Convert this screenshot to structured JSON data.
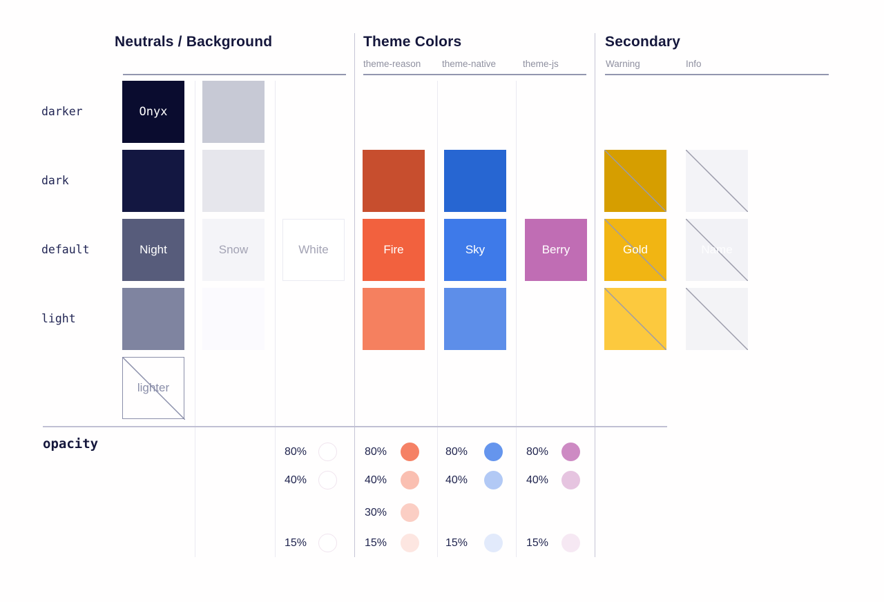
{
  "headers": {
    "neutrals": {
      "title": "Neutrals / Background"
    },
    "theme": {
      "title": "Theme Colors",
      "subtitles": [
        "theme-reason",
        "theme-native",
        "theme-js"
      ]
    },
    "secondary": {
      "title": "Secondary",
      "subtitles": [
        "Warning",
        "Info"
      ]
    }
  },
  "row_labels": [
    {
      "id": "darker",
      "label": "darker"
    },
    {
      "id": "dark",
      "label": "dark"
    },
    {
      "id": "default",
      "label": "default"
    },
    {
      "id": "light",
      "label": "light"
    }
  ],
  "opacity_section": {
    "label": "opacity",
    "columns": [
      {
        "name": "white",
        "base_color": "#FFFFFF",
        "bordered": true,
        "border_color": "#F0E4EE",
        "entries": [
          {
            "percent": "80%"
          },
          {
            "percent": "40%"
          },
          {
            "percent": "15%"
          }
        ]
      },
      {
        "name": "fire",
        "base_color": "#F2613E",
        "entries": [
          {
            "percent": "80%"
          },
          {
            "percent": "40%"
          },
          {
            "percent": "30%"
          },
          {
            "percent": "15%"
          }
        ]
      },
      {
        "name": "sky",
        "base_color": "#3E7AE9",
        "entries": [
          {
            "percent": "80%"
          },
          {
            "percent": "40%"
          },
          {
            "percent": "15%"
          }
        ]
      },
      {
        "name": "berry",
        "base_color": "#C06DB4",
        "entries": [
          {
            "percent": "80%"
          },
          {
            "percent": "40%"
          },
          {
            "percent": "15%"
          }
        ]
      }
    ]
  },
  "swatches": [
    {
      "name": "swatch-onyx",
      "column": "neutral-1",
      "row": "darker",
      "color": "#0A0C2F",
      "label": "Onyx",
      "label_color": "#FFFFFF",
      "mono": true
    },
    {
      "name": "swatch-neutral-dark",
      "column": "neutral-1",
      "row": "dark",
      "color": "#131741"
    },
    {
      "name": "swatch-night",
      "column": "neutral-1",
      "row": "default",
      "color": "#575C7B",
      "label": "Night",
      "label_color": "#FFFFFF"
    },
    {
      "name": "swatch-neutral-light",
      "column": "neutral-1",
      "row": "light",
      "color": "#7F84A0"
    },
    {
      "name": "swatch-lighter",
      "column": "neutral-1",
      "row": "lighter",
      "color": "transparent",
      "border_color": "#8A8EA9",
      "crossed": true,
      "cross_color": "#8A8EA9",
      "label": "lighter",
      "label_color": "#8A8EA9"
    },
    {
      "name": "swatch-bg-darker",
      "column": "neutral-2",
      "row": "darker",
      "color": "#C7C9D5"
    },
    {
      "name": "swatch-bg-dark",
      "column": "neutral-2",
      "row": "dark",
      "color": "#E6E6EC"
    },
    {
      "name": "swatch-snow",
      "column": "neutral-2",
      "row": "default",
      "color": "#F4F4F8",
      "label": "Snow",
      "label_color": "#A3A3B4"
    },
    {
      "name": "swatch-bg-light",
      "column": "neutral-2",
      "row": "light",
      "color": "#FBFAFE"
    },
    {
      "name": "swatch-white",
      "column": "neutral-3",
      "row": "default",
      "color": "#FFFFFF",
      "border_color": "#EAEAF2",
      "label": "White",
      "label_color": "#A3A3B4"
    },
    {
      "name": "swatch-fire-dark",
      "column": "fire",
      "row": "dark",
      "color": "#C74E2E"
    },
    {
      "name": "swatch-fire",
      "column": "fire",
      "row": "default",
      "color": "#F2613E",
      "label": "Fire",
      "label_color": "#FFFFFF"
    },
    {
      "name": "swatch-fire-light",
      "column": "fire",
      "row": "light",
      "color": "#F5805F"
    },
    {
      "name": "swatch-sky-dark",
      "column": "sky",
      "row": "dark",
      "color": "#2766D2"
    },
    {
      "name": "swatch-sky",
      "column": "sky",
      "row": "default",
      "color": "#3E7AE9",
      "label": "Sky",
      "label_color": "#FFFFFF"
    },
    {
      "name": "swatch-sky-light",
      "column": "sky",
      "row": "light",
      "color": "#5D8EE9"
    },
    {
      "name": "swatch-berry",
      "column": "berry",
      "row": "default",
      "color": "#C06DB4",
      "label": "Berry",
      "label_color": "#FFFFFF"
    },
    {
      "name": "swatch-gold-dark",
      "column": "warning",
      "row": "dark",
      "color": "#D69E00",
      "crossed": true,
      "cross_color": "#9B9BAA"
    },
    {
      "name": "swatch-gold",
      "column": "warning",
      "row": "default",
      "color": "#F1B513",
      "label": "Gold",
      "label_color": "#FFFFFF",
      "crossed": true,
      "cross_color": "#9B9BAA"
    },
    {
      "name": "swatch-gold-light",
      "column": "warning",
      "row": "light",
      "color": "#FCC93E",
      "crossed": true,
      "cross_color": "#9B9BAA"
    },
    {
      "name": "swatch-info-dark",
      "column": "info",
      "row": "dark",
      "color": "#F3F3F7",
      "crossed": true,
      "cross_color": "#9B9BAA"
    },
    {
      "name": "swatch-info",
      "column": "info",
      "row": "default",
      "color": "#F2F2F6",
      "label": "Name",
      "label_color": "#FDFDFE",
      "crossed": true,
      "cross_color": "#9B9BAA"
    },
    {
      "name": "swatch-info-light",
      "column": "info",
      "row": "light",
      "color": "#F3F3F6",
      "crossed": true,
      "cross_color": "#9B9BAA"
    }
  ],
  "colors": {
    "header_text": "#15173C",
    "row_label_text": "#1F2352",
    "subtitle_text": "#8F90A0",
    "underline": "#9296AE",
    "section_divider": "#C5C5D5",
    "grid_line": "#EAE9F1",
    "opacity_divider": "#C0C0D3"
  }
}
